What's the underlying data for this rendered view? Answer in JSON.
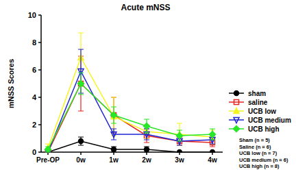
{
  "chart_data": {
    "type": "line",
    "title": "Acute mNSS",
    "y_label": "mNSS Scores",
    "categories": [
      "Pre-OP",
      "0w",
      "1w",
      "2w",
      "3w",
      "4w"
    ],
    "ylim": [
      0,
      10
    ],
    "yticks": [
      0,
      2,
      4,
      6,
      8,
      10
    ],
    "grid": false,
    "legend": "right",
    "series": [
      {
        "name": "sham",
        "color": "#000000",
        "marker": "circle",
        "values": [
          0,
          0.8,
          0.2,
          0.2,
          0,
          0
        ],
        "errors": [
          0,
          0.3,
          0.2,
          0.2,
          0,
          0
        ]
      },
      {
        "name": "saline",
        "color": "#e8231e",
        "marker": "square-open",
        "values": [
          0,
          5.0,
          2.7,
          1.2,
          0.8,
          0.7
        ],
        "errors": [
          0.1,
          2.0,
          1.3,
          0.5,
          0.3,
          0.3
        ]
      },
      {
        "name": "UCB low",
        "color": "#f5f51e",
        "marker": "triangle-up",
        "values": [
          0.3,
          6.9,
          2.6,
          1.5,
          1.3,
          1.1
        ],
        "errors": [
          0.3,
          1.8,
          1.4,
          0.5,
          0.8,
          0.5
        ]
      },
      {
        "name": "UCB medium",
        "color": "#1e23d2",
        "marker": "triangle-down-open",
        "values": [
          0,
          5.9,
          1.3,
          1.3,
          0.8,
          0.9
        ],
        "errors": [
          0.1,
          1.6,
          0.4,
          0.4,
          0.3,
          0.3
        ]
      },
      {
        "name": "UCB high",
        "color": "#28e628",
        "marker": "diamond",
        "values": [
          0.2,
          5.0,
          2.7,
          1.9,
          1.2,
          1.3
        ],
        "errors": [
          0.2,
          0.8,
          0.6,
          0.5,
          0.4,
          0.4
        ]
      }
    ],
    "annotations": [
      "Sham (n = 5)",
      "Saline (n = 6)",
      "UCB low (n = 7)",
      "UCB medium (n = 6)",
      "UCB high (n = 8)"
    ]
  }
}
